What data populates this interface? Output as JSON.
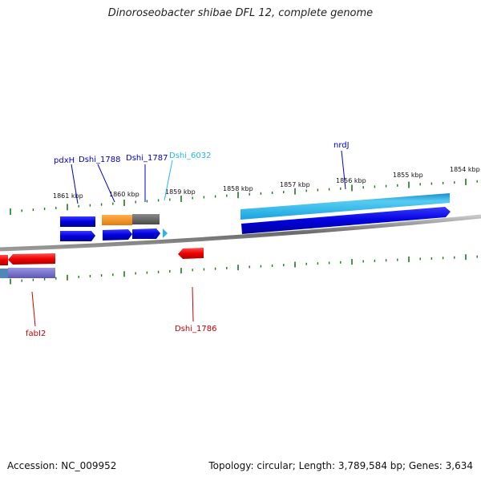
{
  "title": "Dinoroseobacter shibae DFL 12, complete genome",
  "accession": "Accession: NC_009952",
  "summary": "Topology: circular; Length: 3,789,584 bp; Genes: 3,634",
  "colors": {
    "forward_gene": "#0000dd",
    "reverse_gene": "#ee0000",
    "rna_gene": "#29b6e8",
    "cds_orange": "#f39422",
    "cds_gray": "#666666",
    "cds_purple": "#7570cc",
    "backbone": "#7a7a7a",
    "tick": "#1a7a1a"
  },
  "scale_labels": [
    "1861 kbp",
    "1860 kbp",
    "1859 kbp",
    "1858 kbp",
    "1857 kbp",
    "1856 kbp",
    "1855 kbp",
    "1854 kbp"
  ],
  "gene_labels": {
    "pdxH": "pdxH",
    "dshi_1788": "Dshi_1788",
    "dshi_1787": "Dshi_1787",
    "dshi_6032": "Dshi_6032",
    "nrdJ": "nrdJ",
    "fabI2": "fabI2",
    "dshi_1786": "Dshi_1786"
  }
}
